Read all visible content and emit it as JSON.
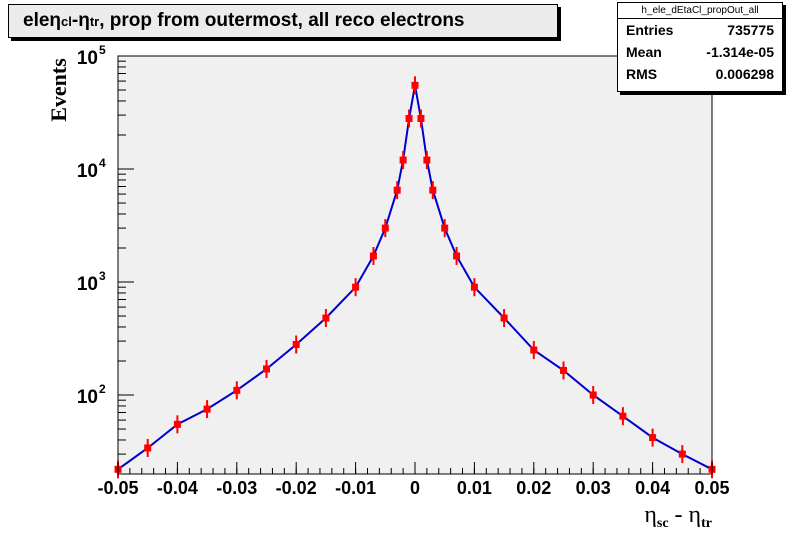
{
  "title": {
    "pre": "ele ",
    "eta_cl": "η",
    "cl_sub": "cl",
    "mid": " - ",
    "eta_tr": "η",
    "tr_sub": "tr",
    "post": ", prop from outermost, all reco electrons"
  },
  "stats": {
    "name": "h_ele_dEtaCl_propOut_all",
    "rows": [
      {
        "label": "Entries",
        "value": "735775"
      },
      {
        "label": "Mean",
        "value": "-1.314e-05"
      },
      {
        "label": "RMS",
        "value": "0.006298"
      }
    ]
  },
  "colors": {
    "frame_bg": "#f0f0f0",
    "marker": "#ff0000",
    "line": "#0000cc"
  },
  "chart_data": {
    "type": "line",
    "ylabel": "Events",
    "xlabel_parts": {
      "eta1": "η",
      "sub1": "sc",
      "dash": " - ",
      "eta2": "η",
      "sub2": "tr"
    },
    "xlim": [
      -0.05,
      0.05
    ],
    "ylim": [
      20,
      100000
    ],
    "yscale": "log",
    "grid": false,
    "x_ticks": [
      "-0.05",
      "-0.04",
      "-0.03",
      "-0.02",
      "-0.01",
      "0",
      "0.01",
      "0.02",
      "0.03",
      "0.04",
      "0.05"
    ],
    "y_ticks": [
      {
        "value": 100,
        "base": "10",
        "exp": "2"
      },
      {
        "value": 1000,
        "base": "10",
        "exp": "3"
      },
      {
        "value": 10000,
        "base": "10",
        "exp": "4"
      },
      {
        "value": 100000,
        "base": "10",
        "exp": "5"
      }
    ],
    "series": [
      {
        "x": [
          -0.05,
          -0.045,
          -0.04,
          -0.035,
          -0.03,
          -0.025,
          -0.02,
          -0.015,
          -0.01,
          -0.007,
          -0.005,
          -0.003,
          -0.002,
          -0.001,
          0.0,
          0.001,
          0.002,
          0.003,
          0.005,
          0.007,
          0.01,
          0.015,
          0.02,
          0.025,
          0.03,
          0.035,
          0.04,
          0.045,
          0.05
        ],
        "y": [
          22,
          34,
          55,
          75,
          110,
          170,
          280,
          480,
          900,
          1700,
          3000,
          6500,
          12000,
          28000,
          55000,
          28000,
          12000,
          6500,
          3000,
          1700,
          900,
          480,
          250,
          165,
          100,
          65,
          42,
          30,
          22
        ]
      }
    ]
  }
}
